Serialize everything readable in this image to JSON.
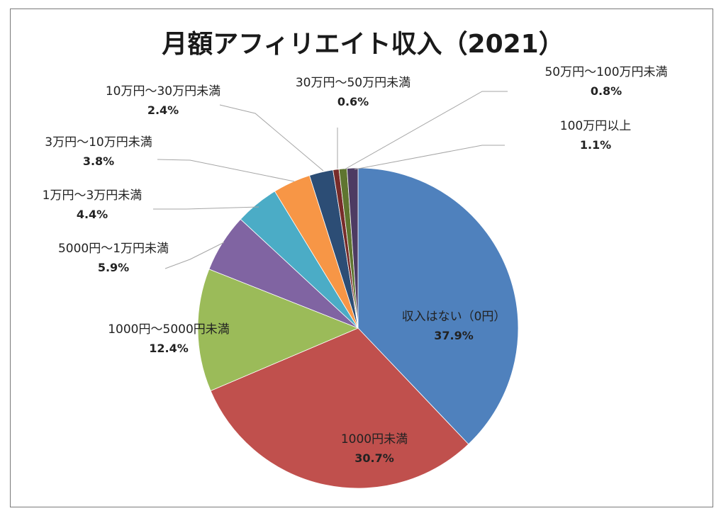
{
  "chart_data": {
    "type": "pie",
    "title": "月額アフィリエイト収入（2021）",
    "start_angle_deg": 0,
    "direction": "clockwise",
    "slices": [
      {
        "label": "収入はない（0円）",
        "value": 37.9,
        "pct_label": "37.9%",
        "color": "#4f81bd"
      },
      {
        "label": "1000円未満",
        "value": 30.7,
        "pct_label": "30.7%",
        "color": "#c0504d"
      },
      {
        "label": "1000円～5000円未満",
        "value": 12.4,
        "pct_label": "12.4%",
        "color": "#9bbb59"
      },
      {
        "label": "5000円～1万円未満",
        "value": 5.9,
        "pct_label": "5.9%",
        "color": "#8064a2"
      },
      {
        "label": "1万円～3万円未満",
        "value": 4.4,
        "pct_label": "4.4%",
        "color": "#4bacc6"
      },
      {
        "label": "3万円～10万円未満",
        "value": 3.8,
        "pct_label": "3.8%",
        "color": "#f79646"
      },
      {
        "label": "10万円～30万円未満",
        "value": 2.4,
        "pct_label": "2.4%",
        "color": "#2c4d75"
      },
      {
        "label": "30万円～50万円未満",
        "value": 0.6,
        "pct_label": "0.6%",
        "color": "#772c2a"
      },
      {
        "label": "50万円～100万円未満",
        "value": 0.8,
        "pct_label": "0.8%",
        "color": "#5f7530"
      },
      {
        "label": "100万円以上",
        "value": 1.1,
        "pct_label": "1.1%",
        "color": "#4d3b62"
      }
    ]
  }
}
